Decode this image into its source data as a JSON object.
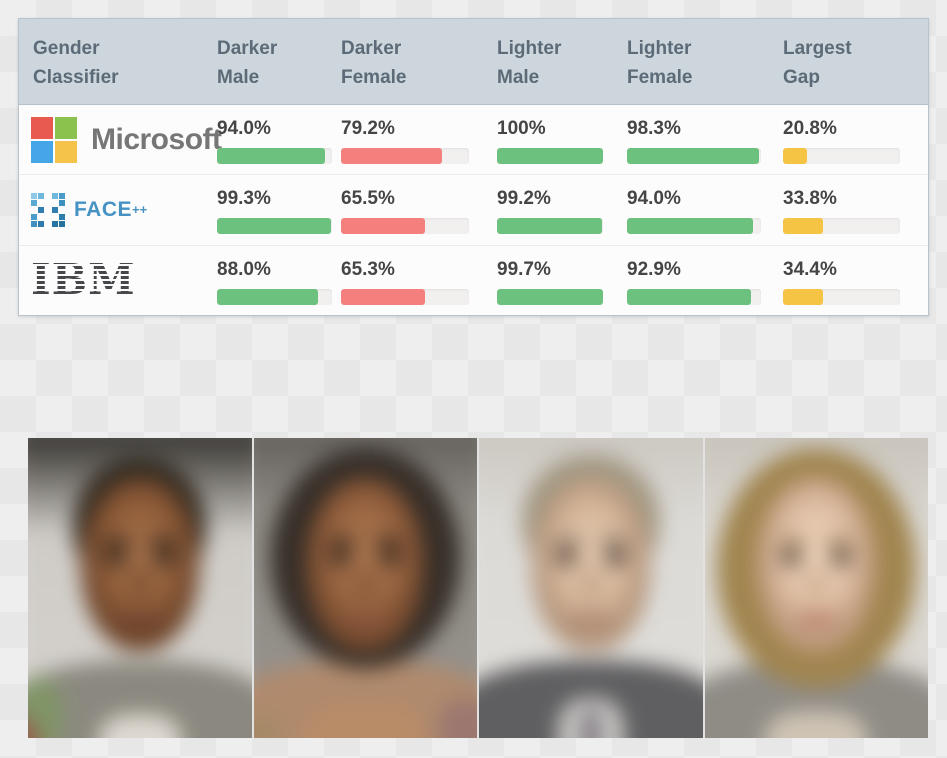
{
  "colors": {
    "green": "#6cc17e",
    "red": "#f4807e",
    "yellow": "#f6c444",
    "header_bg": "#ccd6dc",
    "header_text": "#5c6b77",
    "value_text": "#454545",
    "card_border": "#b8c4cd",
    "row_bg": "#fcfcfc",
    "track": "#f1f0ef",
    "ms_red": "#e8594f",
    "ms_green": "#8bc14d",
    "ms_blue": "#45a5e6",
    "ms_yellow": "#f5c24a",
    "ms_text": "#767676",
    "facepp_blue": "#4592c3",
    "ibm_text": "#45474b"
  },
  "table": {
    "headers": [
      {
        "line1": "Gender",
        "line2": "Classifier"
      },
      {
        "line1": "Darker",
        "line2": "Male"
      },
      {
        "line1": "Darker",
        "line2": "Female"
      },
      {
        "line1": "Lighter",
        "line2": "Male"
      },
      {
        "line1": "Lighter",
        "line2": "Female"
      },
      {
        "line1": "Largest",
        "line2": "Gap"
      }
    ],
    "rows": [
      {
        "brand": "Microsoft",
        "logo_text": "Microsoft",
        "metrics": [
          {
            "label": "94.0%",
            "value": 94.0,
            "color": "green"
          },
          {
            "label": "79.2%",
            "value": 79.2,
            "color": "red"
          },
          {
            "label": "100%",
            "value": 100,
            "color": "green"
          },
          {
            "label": "98.3%",
            "value": 98.3,
            "color": "green"
          },
          {
            "label": "20.8%",
            "value": 20.8,
            "color": "yellow"
          }
        ]
      },
      {
        "brand": "Face++",
        "logo_text": "FACE",
        "logo_sup": "++",
        "metrics": [
          {
            "label": "99.3%",
            "value": 99.3,
            "color": "green"
          },
          {
            "label": "65.5%",
            "value": 65.5,
            "color": "red"
          },
          {
            "label": "99.2%",
            "value": 99.2,
            "color": "green"
          },
          {
            "label": "94.0%",
            "value": 94.0,
            "color": "green"
          },
          {
            "label": "33.8%",
            "value": 33.8,
            "color": "yellow"
          }
        ]
      },
      {
        "brand": "IBM",
        "logo_text": "IBM",
        "metrics": [
          {
            "label": "88.0%",
            "value": 88.0,
            "color": "green"
          },
          {
            "label": "65.3%",
            "value": 65.3,
            "color": "red"
          },
          {
            "label": "99.7%",
            "value": 99.7,
            "color": "green"
          },
          {
            "label": "92.9%",
            "value": 92.9,
            "color": "green"
          },
          {
            "label": "34.4%",
            "value": 34.4,
            "color": "yellow"
          }
        ]
      }
    ]
  },
  "chart_data": {
    "type": "table",
    "categories": [
      "Darker Male",
      "Darker Female",
      "Lighter Male",
      "Lighter Female",
      "Largest Gap"
    ],
    "series": [
      {
        "name": "Microsoft",
        "values": [
          94.0,
          79.2,
          100,
          98.3,
          20.8
        ]
      },
      {
        "name": "Face++",
        "values": [
          99.3,
          65.5,
          99.2,
          94.0,
          33.8
        ]
      },
      {
        "name": "IBM",
        "values": [
          88.0,
          65.3,
          99.7,
          92.9,
          34.4
        ]
      }
    ],
    "value_format": "percent",
    "bar_range": [
      0,
      100
    ],
    "bar_colors": {
      "accuracy_high": "green",
      "accuracy_low": "red",
      "gap": "yellow"
    }
  },
  "faces": {
    "panels": [
      {
        "label": "Darker Male average face"
      },
      {
        "label": "Darker Female average face"
      },
      {
        "label": "Lighter Male average face"
      },
      {
        "label": "Lighter Female average face"
      }
    ]
  }
}
